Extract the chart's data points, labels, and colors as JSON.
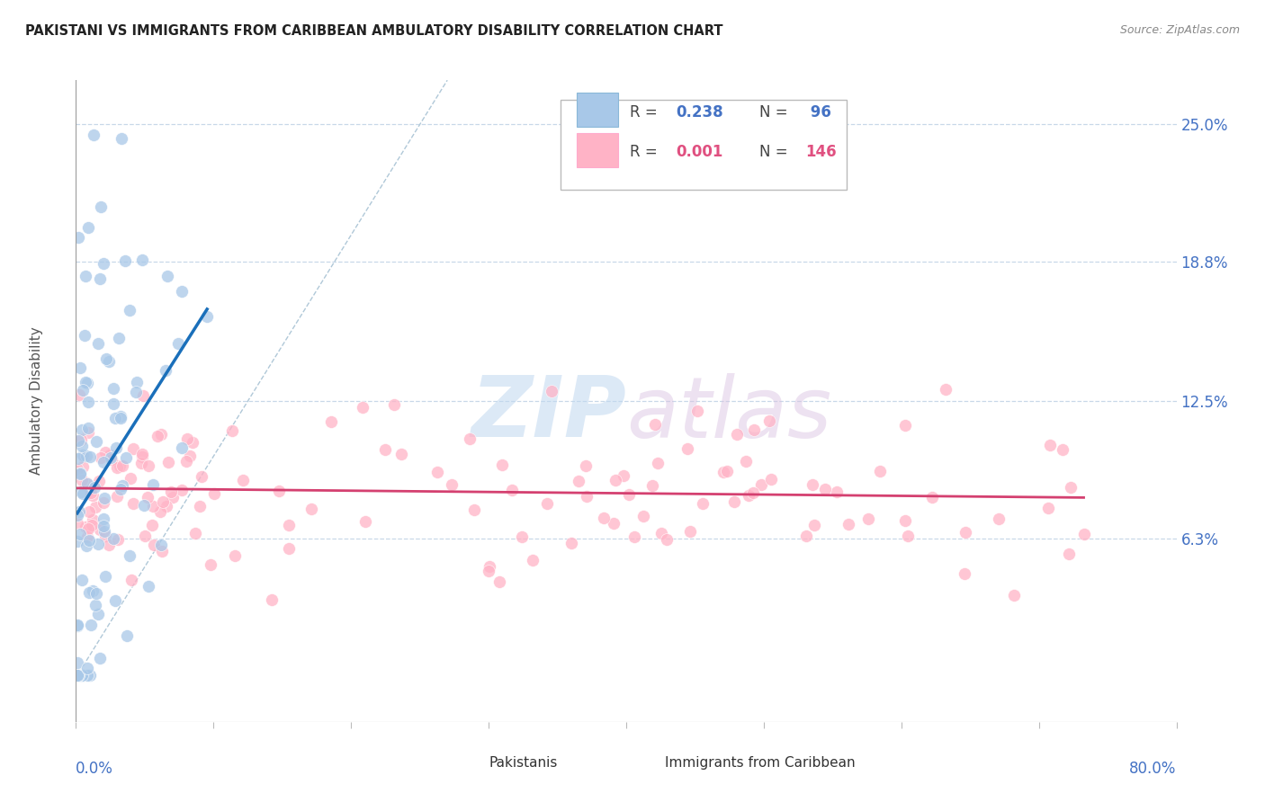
{
  "title": "PAKISTANI VS IMMIGRANTS FROM CARIBBEAN AMBULATORY DISABILITY CORRELATION CHART",
  "source": "Source: ZipAtlas.com",
  "ylabel": "Ambulatory Disability",
  "ytick_labels": [
    "6.3%",
    "12.5%",
    "18.8%",
    "25.0%"
  ],
  "ytick_values": [
    0.063,
    0.125,
    0.188,
    0.25
  ],
  "xlim": [
    0.0,
    0.8
  ],
  "ylim": [
    -0.02,
    0.27
  ],
  "legend1_R": "0.238",
  "legend1_N": "96",
  "legend2_R": "0.001",
  "legend2_N": "146",
  "watermark_zip": "ZIP",
  "watermark_atlas": "atlas",
  "blue_color": "#a8c8e8",
  "pink_color": "#ffb3c6",
  "trend_blue": "#1a6fba",
  "trend_pink": "#d44070",
  "diagonal_color": "#b0c4de",
  "legend_R_color": "#4472c4",
  "legend_N_color": "#4472c4",
  "legend2_R_color": "#e05080",
  "legend2_N_color": "#e05080",
  "ytick_color": "#4472c4",
  "xtick_color": "#4472c4",
  "ylabel_color": "#555555",
  "title_color": "#222222",
  "source_color": "#888888"
}
